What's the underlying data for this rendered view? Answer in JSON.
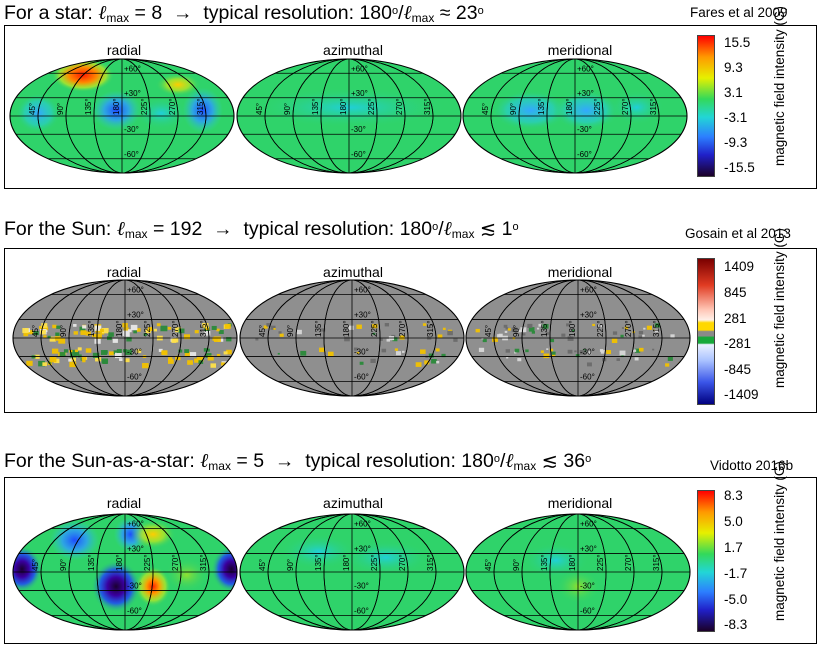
{
  "panels": [
    {
      "heading": {
        "pre": "For a star: ",
        "lmax_value": "8",
        "arrow": "→",
        "res_pre": "typical resolution: 180",
        "deg": "o",
        "approx": "≈ 23",
        "deg2": "o"
      },
      "reference": "Fares et al 2009",
      "map_titles": [
        "radial",
        "azimuthal",
        "meridional"
      ],
      "colorbar": {
        "ticks": [
          "15.5",
          "9.3",
          "3.1",
          "-3.1",
          "-9.3",
          "-15.5"
        ],
        "title": "magnetic field intensity (G)",
        "scheme": "rainbow"
      },
      "style": "star"
    },
    {
      "heading": {
        "pre": "For the Sun: ",
        "lmax_value": "192",
        "arrow": "→",
        "res_pre": "typical resolution: 180",
        "deg": "o",
        "approx": "≲ 1",
        "deg2": "o"
      },
      "reference": "Gosain et al 2013",
      "map_titles": [
        "radial",
        "azimuthal",
        "meridional"
      ],
      "colorbar": {
        "ticks": [
          "1409",
          "845",
          "281",
          "-281",
          "-845",
          "-1409"
        ],
        "title": "magnetic field intensity (G)",
        "scheme": "solar"
      },
      "style": "sun"
    },
    {
      "heading": {
        "pre": "For the Sun-as-a-star: ",
        "lmax_value": "5",
        "arrow": "→",
        "res_pre": "typical resolution: 180",
        "deg": "o",
        "approx": "≲ 36",
        "deg2": "o"
      },
      "reference": "Vidotto 2016b",
      "map_titles": [
        "radial",
        "azimuthal",
        "meridional"
      ],
      "colorbar": {
        "ticks": [
          "8.3",
          "5.0",
          "1.7",
          "-1.7",
          "-5.0",
          "-8.3"
        ],
        "title": "magnetic field intensity (G)",
        "scheme": "rainbow"
      },
      "style": "sunstar"
    }
  ],
  "grid_labels": {
    "latitudes": [
      "+60°",
      "+30°",
      "-30°",
      "-60°"
    ],
    "longitudes": [
      "45°",
      "90°",
      "135°",
      "180°",
      "225°",
      "270°",
      "315°"
    ]
  },
  "lmax_symbol": "ℓ",
  "lmax_sub": "max",
  "colors": {
    "grid": "#000000",
    "sun_bg": "#8f8f8f",
    "star_bg": "#2fd36a"
  }
}
